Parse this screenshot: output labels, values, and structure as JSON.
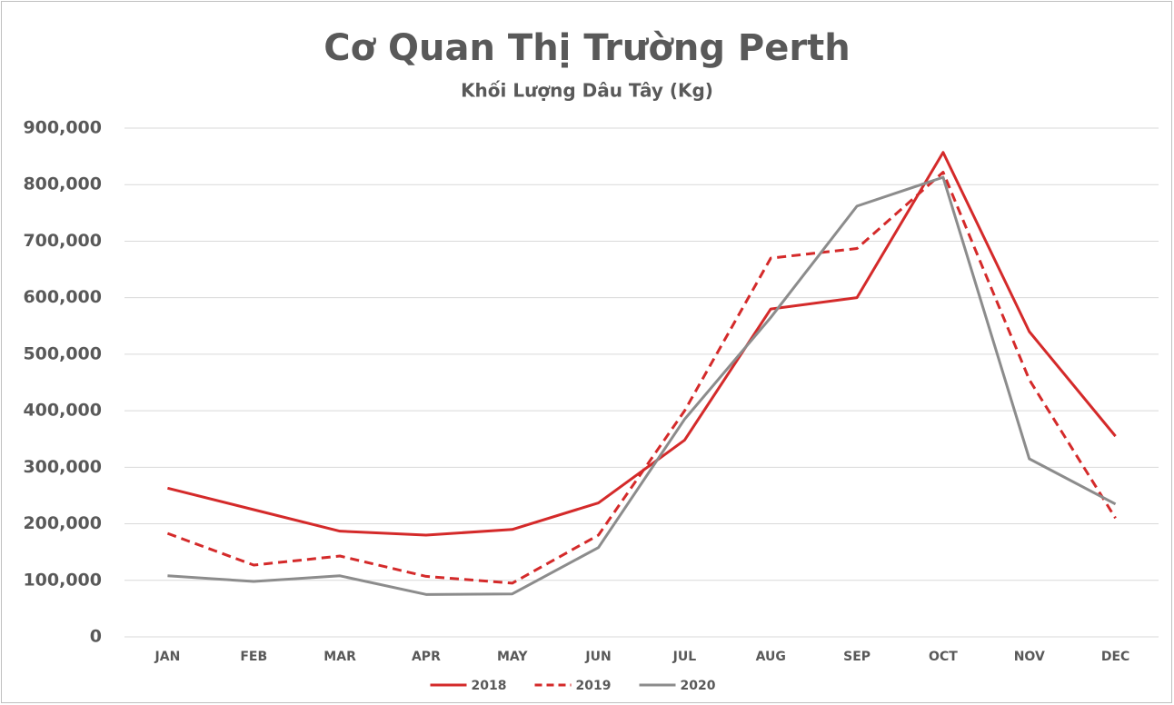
{
  "chart_data": {
    "type": "line",
    "title": "Cơ Quan Thị Trường Perth",
    "subtitle": "Khối Lượng Dâu Tây (Kg)",
    "categories": [
      "JAN",
      "FEB",
      "MAR",
      "APR",
      "MAY",
      "JUN",
      "JUL",
      "AUG",
      "SEP",
      "OCT",
      "NOV",
      "DEC"
    ],
    "series": [
      {
        "name": "2018",
        "color": "#d42a2a",
        "dash": "solid",
        "values": [
          263000,
          225000,
          187000,
          180000,
          190000,
          237000,
          348000,
          580000,
          600000,
          857000,
          540000,
          355000
        ]
      },
      {
        "name": "2019",
        "color": "#d42a2a",
        "dash": "dashed",
        "values": [
          183000,
          127000,
          143000,
          107000,
          95000,
          180000,
          400000,
          670000,
          687000,
          822000,
          455000,
          210000
        ]
      },
      {
        "name": "2020",
        "color": "#8c8c8c",
        "dash": "solid",
        "values": [
          108000,
          98000,
          108000,
          75000,
          76000,
          158000,
          385000,
          565000,
          762000,
          813000,
          315000,
          235000
        ]
      }
    ],
    "ylim": [
      0,
      900000
    ],
    "yticks": [
      0,
      {
        "value": 100000,
        "label": "100,000"
      },
      {
        "value": 200000,
        "label": "200,000"
      },
      {
        "value": 300000,
        "label": "300,000"
      },
      {
        "value": 400000,
        "label": "400,000"
      },
      {
        "value": 500000,
        "label": "500,000"
      },
      {
        "value": 600000,
        "label": "600,000"
      },
      {
        "value": 700000,
        "label": "700,000"
      },
      {
        "value": 800000,
        "label": "800,000"
      },
      {
        "value": 900000,
        "label": "900,000"
      }
    ],
    "grid": true,
    "legend": "bottom"
  }
}
